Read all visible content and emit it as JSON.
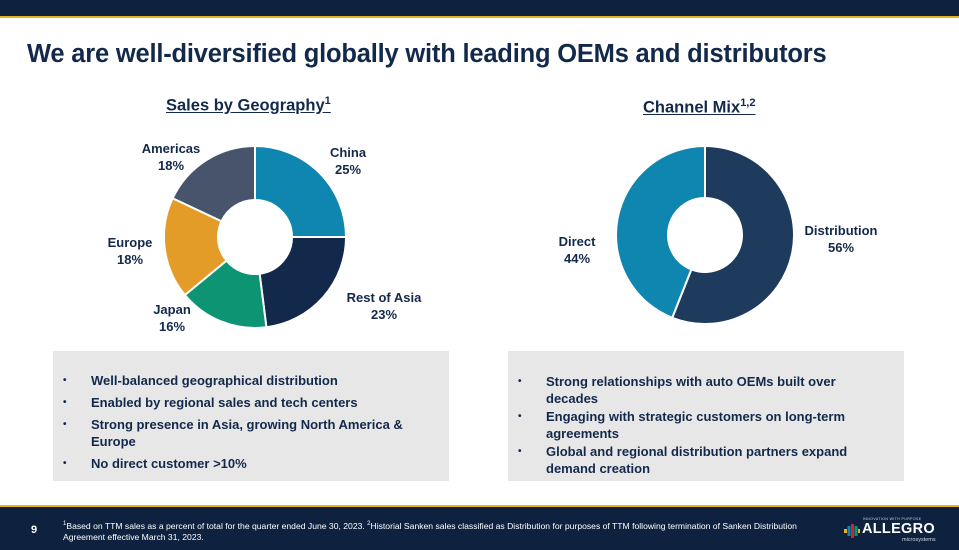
{
  "title": "We are well-diversified globally with leading OEMs and distributors",
  "chart_data": [
    {
      "type": "pie",
      "style": "donut",
      "title": "Sales by Geography",
      "title_sup": "1",
      "categories": [
        "China",
        "Rest of Asia",
        "Japan",
        "Europe",
        "Americas"
      ],
      "values": [
        25,
        23,
        16,
        18,
        18
      ],
      "value_labels": [
        "25%",
        "23%",
        "16%",
        "18%",
        "18%"
      ],
      "colors": [
        "#0e86b0",
        "#13294b",
        "#0c9473",
        "#e39c28",
        "#47546c"
      ]
    },
    {
      "type": "pie",
      "style": "donut",
      "title": "Channel Mix",
      "title_sup": "1,2",
      "categories": [
        "Distribution",
        "Direct"
      ],
      "values": [
        56,
        44
      ],
      "value_labels": [
        "56%",
        "44%"
      ],
      "colors": [
        "#1e3a5c",
        "#0e86b0"
      ]
    }
  ],
  "left_box": {
    "bullets": [
      "Well-balanced geographical distribution",
      "Enabled by regional sales and tech centers",
      "Strong presence in Asia, growing North America & Europe",
      "No direct customer >10%"
    ]
  },
  "right_box": {
    "bullets": [
      "Strong relationships with auto OEMs built over decades",
      "Engaging with strategic customers on long-term agreements",
      "Global and regional distribution partners expand demand creation"
    ]
  },
  "footer": {
    "page_number": "9",
    "note1_sup": "1",
    "note1": "Based on TTM sales as a percent of total for the quarter ended June 30, 2023. ",
    "note2_sup": "2",
    "note2": "Historial Sanken sales classified as Distribution for purposes of TTM following termination of Sanken Distribution Agreement effective March 31, 2023.",
    "logo_tagline": "INNOVATION WITH PURPOSE",
    "logo_text": "ALLEGRO",
    "logo_sub": "microsystems"
  },
  "bullet_glyph": "•"
}
